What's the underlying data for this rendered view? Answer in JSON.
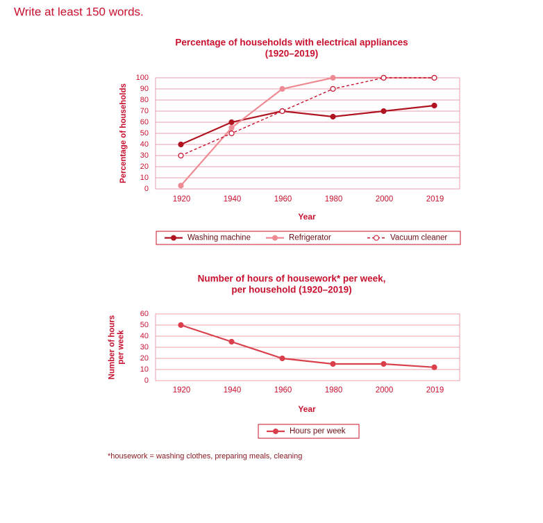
{
  "instruction": "Write at least 150 words.",
  "chart_data": [
    {
      "type": "line",
      "title": "Percentage of households with electrical appliances",
      "subtitle": "(1920–2019)",
      "xlabel": "Year",
      "ylabel": [
        "Percentage of households"
      ],
      "categories": [
        "1920",
        "1940",
        "1960",
        "1980",
        "2000",
        "2019"
      ],
      "series": [
        {
          "name": "Washing machine",
          "color": "#b01420",
          "marker": "filled",
          "line_style": "solid",
          "values": [
            40,
            60,
            70,
            65,
            70,
            75
          ]
        },
        {
          "name": "Refrigerator",
          "color": "#ee8a94",
          "marker": "filled",
          "line_style": "solid",
          "values": [
            3,
            55,
            90,
            100,
            100,
            100
          ]
        },
        {
          "name": "Vacuum cleaner",
          "color": "#c8102e",
          "marker": "open",
          "line_style": "dashed",
          "values": [
            30,
            50,
            70,
            90,
            100,
            100
          ]
        }
      ],
      "ylim": [
        0,
        100
      ],
      "yticks": [
        0,
        10,
        20,
        30,
        40,
        50,
        60,
        70,
        80,
        90,
        100
      ],
      "grid": true
    },
    {
      "type": "line",
      "title": "Number of hours of housework* per week,",
      "subtitle": "per household (1920–2019)",
      "xlabel": "Year",
      "ylabel": [
        "Number of hours",
        "per week"
      ],
      "categories": [
        "1920",
        "1940",
        "1960",
        "1980",
        "2000",
        "2019"
      ],
      "series": [
        {
          "name": "Hours per week",
          "color": "#d9404c",
          "marker": "filled",
          "line_style": "solid",
          "values": [
            50,
            35,
            20,
            15,
            15,
            12
          ]
        }
      ],
      "ylim": [
        0,
        60
      ],
      "yticks": [
        0,
        10,
        20,
        30,
        40,
        50,
        60
      ],
      "grid": true
    }
  ],
  "footnote": "*housework = washing clothes, preparing meals, cleaning"
}
